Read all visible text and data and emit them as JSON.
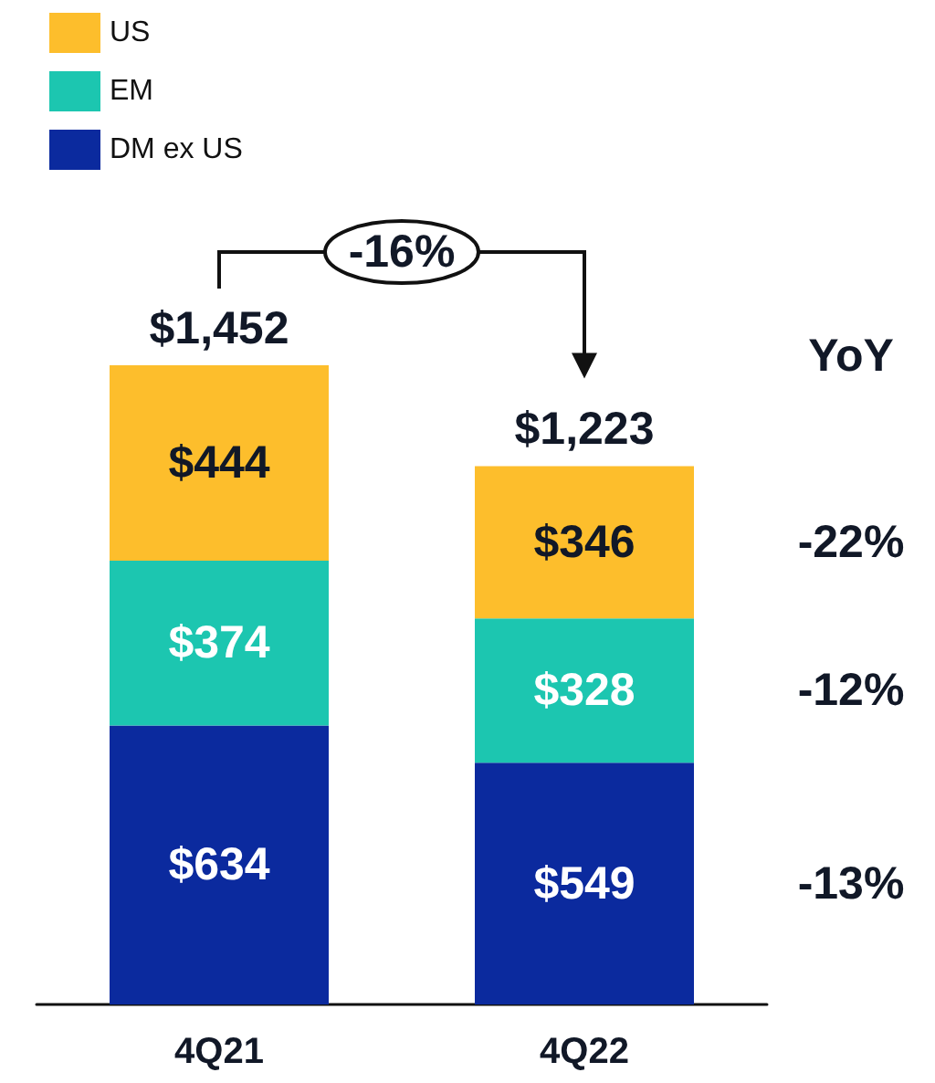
{
  "chart_data": {
    "type": "bar",
    "stacked": true,
    "categories": [
      "4Q21",
      "4Q22"
    ],
    "series": [
      {
        "name": "DM ex US",
        "color": "#0b2a9e",
        "values": [
          634,
          549
        ],
        "value_labels": [
          "$634",
          "$549"
        ]
      },
      {
        "name": "EM",
        "color": "#1cc6b0",
        "values": [
          374,
          328
        ],
        "value_labels": [
          "$374",
          "$328"
        ]
      },
      {
        "name": "US",
        "color": "#fdbe2c",
        "values": [
          444,
          346
        ],
        "value_labels": [
          "$444",
          "$346"
        ]
      }
    ],
    "totals": [
      "$1,452",
      "$1,223"
    ],
    "annotations": [
      "-16%",
      "YoY",
      "-22%",
      "-12%",
      "-13%"
    ],
    "legend": "top left"
  }
}
